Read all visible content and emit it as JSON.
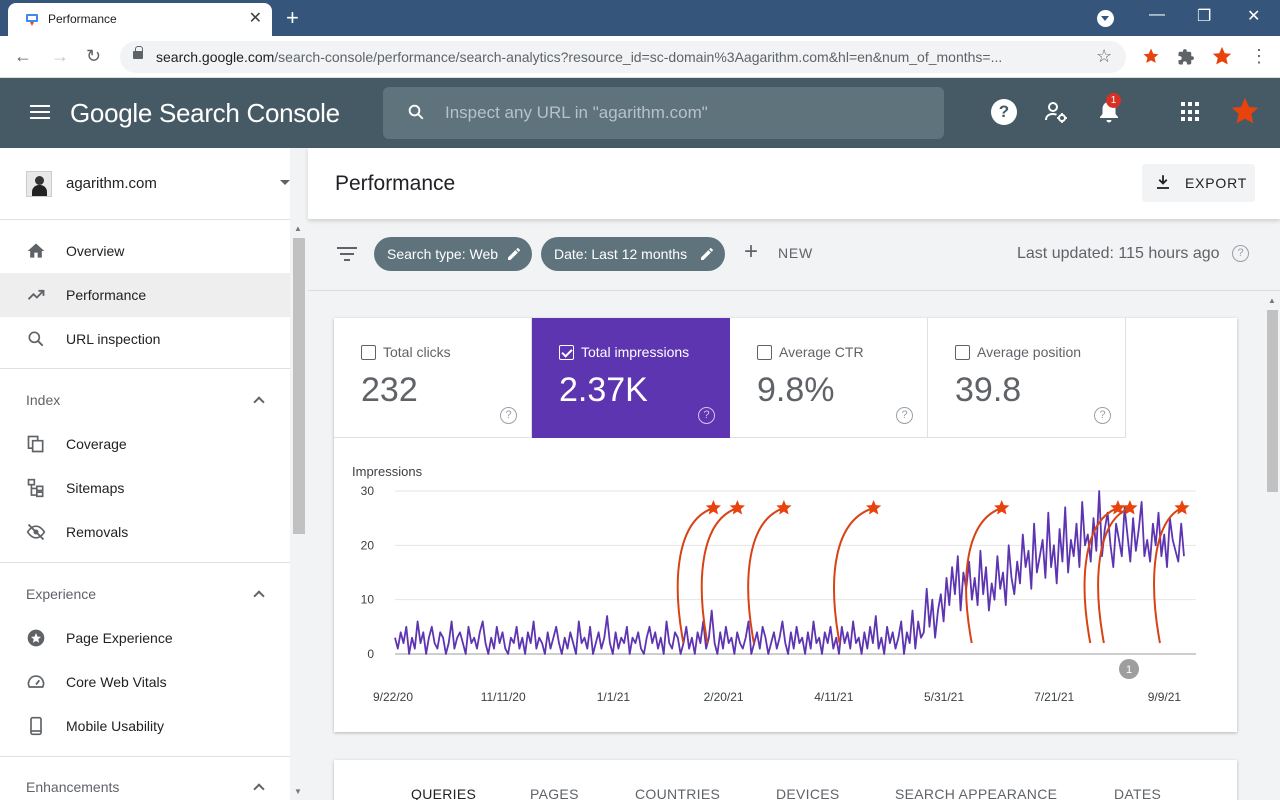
{
  "browser": {
    "tab_title": "Performance",
    "url_host": "search.google.com",
    "url_path": "/search-console/performance/search-analytics?resource_id=sc-domain%3Aagarithm.com&hl=en&num_of_months=..."
  },
  "header": {
    "product_name": "Google Search Console",
    "search_placeholder": "Inspect any URL in \"agarithm.com\"",
    "notification_count": "1"
  },
  "sidebar": {
    "property": "agarithm.com",
    "top_items": [
      {
        "label": "Overview",
        "icon": "home-icon"
      },
      {
        "label": "Performance",
        "icon": "trending-up-icon",
        "active": true
      },
      {
        "label": "URL inspection",
        "icon": "search-icon"
      }
    ],
    "sections": [
      {
        "title": "Index",
        "items": [
          {
            "label": "Coverage",
            "icon": "coverage-icon"
          },
          {
            "label": "Sitemaps",
            "icon": "sitemap-icon"
          },
          {
            "label": "Removals",
            "icon": "visibility-off-icon"
          }
        ]
      },
      {
        "title": "Experience",
        "items": [
          {
            "label": "Page Experience",
            "icon": "page-experience-icon"
          },
          {
            "label": "Core Web Vitals",
            "icon": "speedometer-icon"
          },
          {
            "label": "Mobile Usability",
            "icon": "phone-icon"
          }
        ]
      },
      {
        "title": "Enhancements",
        "items": []
      }
    ]
  },
  "main": {
    "page_title": "Performance",
    "export_label": "EXPORT",
    "filters": [
      "Search type: Web",
      "Date: Last 12 months"
    ],
    "new_label": "NEW",
    "last_updated": "Last updated: 115 hours ago",
    "metrics": [
      {
        "label": "Total clicks",
        "value": "232",
        "checked": false
      },
      {
        "label": "Total impressions",
        "value": "2.37K",
        "checked": true
      },
      {
        "label": "Average CTR",
        "value": "9.8%",
        "checked": false
      },
      {
        "label": "Average position",
        "value": "39.8",
        "checked": false
      }
    ],
    "table_tabs": [
      "QUERIES",
      "PAGES",
      "COUNTRIES",
      "DEVICES",
      "SEARCH APPEARANCE",
      "DATES"
    ]
  },
  "colors": {
    "header_bg": "#455a64",
    "accent_purple": "#5e35b1",
    "annotation_orange": "#e8430c"
  },
  "chart_data": {
    "type": "line",
    "ylabel": "Impressions",
    "ylim": [
      0,
      30
    ],
    "yticks": [
      0,
      10,
      20,
      30
    ],
    "x_tick_labels": [
      "9/22/20",
      "11/11/20",
      "1/1/21",
      "2/20/21",
      "4/11/21",
      "5/31/21",
      "7/21/21",
      "9/9/21"
    ],
    "series": [
      {
        "values": [
          3,
          1,
          4,
          2,
          5,
          0,
          3,
          1,
          6,
          2,
          4,
          0,
          3,
          5,
          2,
          1,
          4,
          3,
          0,
          2,
          6,
          1,
          3,
          4,
          2,
          0,
          5,
          2,
          3,
          1,
          4,
          6,
          2,
          0,
          3,
          1,
          5,
          2,
          4,
          1,
          0,
          3,
          2,
          5,
          1,
          3,
          0,
          4,
          2,
          6,
          1,
          3,
          2,
          0,
          4,
          1,
          3,
          5,
          2,
          0,
          3,
          1,
          4,
          2,
          0,
          6,
          2,
          3,
          1,
          5,
          0,
          2,
          4,
          1,
          3,
          7,
          2,
          0,
          4,
          1,
          3,
          2,
          5,
          0,
          3,
          2,
          4,
          1,
          0,
          3,
          5,
          2,
          4,
          1,
          3,
          0,
          6,
          2,
          1,
          4,
          3,
          0,
          2,
          5,
          1,
          3,
          0,
          4,
          2,
          6,
          1,
          3,
          8,
          2,
          0,
          4,
          1,
          5,
          2,
          3,
          0,
          4,
          2,
          1,
          3,
          6,
          0,
          2,
          4,
          1,
          5,
          3,
          0,
          2,
          4,
          1,
          3,
          6,
          2,
          0,
          4,
          1,
          5,
          2,
          3,
          0,
          4,
          1,
          6,
          2,
          3,
          0,
          4,
          2,
          5,
          1,
          3,
          0,
          5,
          2,
          4,
          1,
          6,
          2,
          3,
          0,
          4,
          1,
          5,
          2,
          7,
          1,
          3,
          0,
          5,
          2,
          4,
          1,
          3,
          6,
          0,
          4,
          2,
          8,
          1,
          6,
          3,
          4,
          12,
          5,
          10,
          3,
          8,
          11,
          6,
          14,
          9,
          16,
          11,
          18,
          8,
          15,
          12,
          17,
          10,
          14,
          9,
          19,
          11,
          16,
          8,
          13,
          10,
          18,
          12,
          15,
          9,
          20,
          14,
          11,
          17,
          13,
          22,
          16,
          19,
          12,
          24,
          15,
          18,
          21,
          14,
          26,
          16,
          20,
          13,
          23,
          17,
          27,
          15,
          21,
          18,
          24,
          16,
          28,
          20,
          22,
          17,
          25,
          19,
          30,
          18,
          23,
          26,
          20,
          16,
          24,
          21,
          18,
          27,
          22,
          17,
          25,
          19,
          23,
          28,
          18,
          21,
          17,
          24,
          20,
          26,
          18,
          22,
          16,
          25,
          21,
          19,
          17,
          24,
          18
        ]
      }
    ],
    "annotations": {
      "star_markers": 9,
      "dot_marker_label": "1"
    }
  }
}
